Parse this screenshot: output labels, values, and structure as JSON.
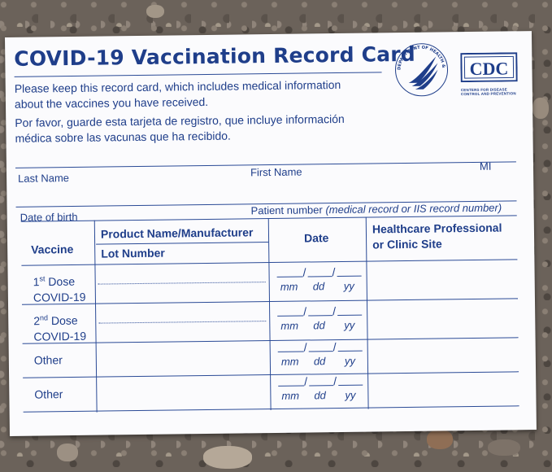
{
  "card": {
    "title": "COVID-19 Vaccination Record Card",
    "intro_en_line1": "Please keep this record card, which includes medical information",
    "intro_en_line2": "about the vaccines you have received.",
    "intro_es_line1": "Por favor, guarde esta tarjeta de registro, que incluye información",
    "intro_es_line2": "médica sobre las vacunas que ha recibido.",
    "hhs_seal_text": "DEPARTMENT OF HEALTH & HUMAN SERVICES • USA",
    "cdc_logo_text": "CDC",
    "cdc_tagline_line1": "CENTERS FOR DISEASE",
    "cdc_tagline_line2": "CONTROL AND PREVENTION"
  },
  "fields": {
    "last_name": "Last Name",
    "first_name": "First Name",
    "mi": "MI",
    "date_of_birth": "Date of birth",
    "patient_number": "Patient number",
    "patient_number_note": "(medical record or IIS record number)"
  },
  "table": {
    "headers": {
      "vaccine": "Vaccine",
      "product": "Product Name/Manufacturer",
      "lot": "Lot Number",
      "date": "Date",
      "site_line1": "Healthcare Professional",
      "site_line2": "or Clinic Site"
    },
    "rows": [
      {
        "ordinal": "1",
        "suffix": "st",
        "label": "Dose",
        "sub": "COVID-19"
      },
      {
        "ordinal": "2",
        "suffix": "nd",
        "label": "Dose",
        "sub": "COVID-19"
      },
      {
        "label": "Other"
      },
      {
        "label": "Other"
      }
    ],
    "date_parts": {
      "mm": "mm",
      "dd": "dd",
      "yy": "yy",
      "sep": "/"
    }
  },
  "colors": {
    "ink": "#1f3e8a",
    "card": "#fbfbfd",
    "background": "#6b625a"
  }
}
